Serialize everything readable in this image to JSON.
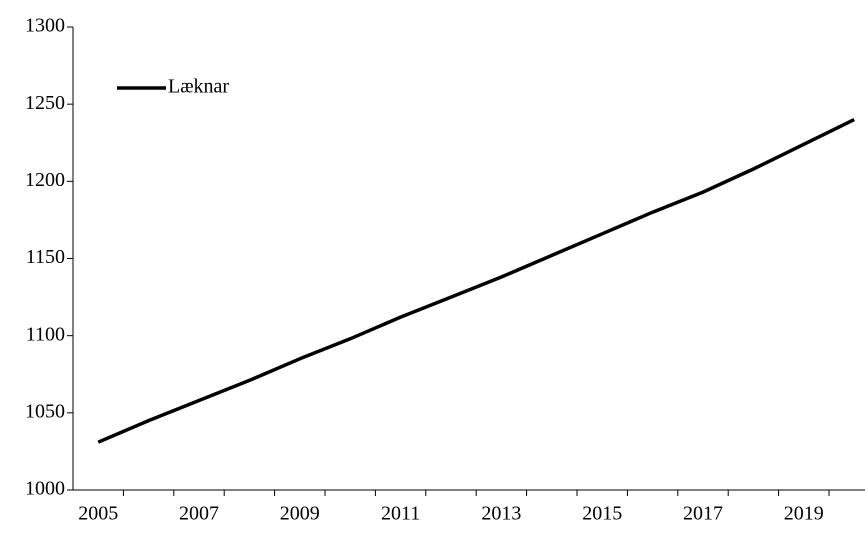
{
  "chart_data": {
    "type": "line",
    "categories": [
      "2005",
      null,
      "2007",
      null,
      "2009",
      null,
      "2011",
      null,
      "2013",
      null,
      "2015",
      null,
      "2017",
      null,
      "2019",
      null
    ],
    "series": [
      {
        "name": "Læknar",
        "color": "#000000",
        "values": [
          1031,
          1045,
          1058,
          1071,
          1085,
          1098,
          1112,
          1125,
          1138,
          1152,
          1166,
          1180,
          1193,
          1208,
          1224,
          1240
        ]
      }
    ],
    "ylim": [
      1000,
      1300
    ],
    "yticks": [
      1000,
      1050,
      1100,
      1150,
      1200,
      1250,
      1300
    ],
    "grid": false,
    "legend": "top-left"
  }
}
